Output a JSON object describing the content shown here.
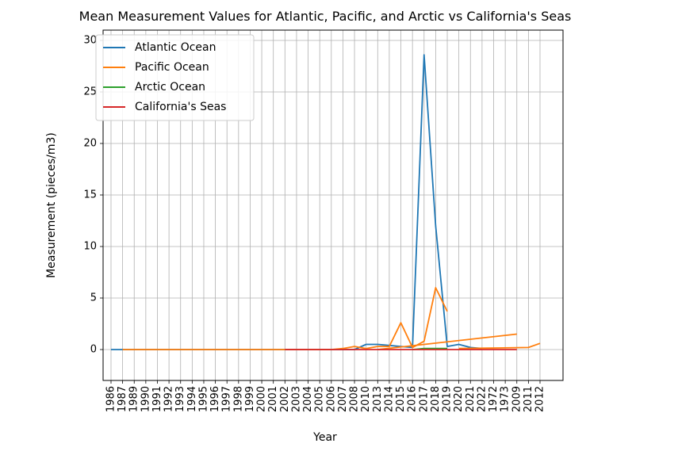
{
  "chart_data": {
    "type": "line",
    "title": "Mean Measurement Values for Atlantic, Pacific, and Arctic vs California's Seas",
    "xlabel": "Year",
    "ylabel": "Measurement (pieces/m3)",
    "categories": [
      "1986",
      "1987",
      "1989",
      "1990",
      "1991",
      "1992",
      "1993",
      "1994",
      "1995",
      "1996",
      "1997",
      "1998",
      "1999",
      "2000",
      "2001",
      "2002",
      "2003",
      "2004",
      "2005",
      "2006",
      "2007",
      "2008",
      "2010",
      "2013",
      "2014",
      "2015",
      "2016",
      "2017",
      "2018",
      "2019",
      "2020",
      "2021",
      "2022",
      "1972",
      "1973",
      "2009",
      "2011",
      "2012"
    ],
    "ylim": [
      -3,
      31
    ],
    "yticks": [
      0,
      5,
      10,
      15,
      20,
      25,
      30
    ],
    "grid": true,
    "legend_position": "upper-left",
    "series": [
      {
        "name": "Atlantic Ocean",
        "color": "#1f77b4",
        "points": [
          [
            "1986",
            0.0
          ],
          [
            "1987",
            0.0
          ],
          [
            "1989",
            0.0
          ],
          [
            "1990",
            0.0
          ],
          [
            "1991",
            0.0
          ],
          [
            "1992",
            0.0
          ],
          [
            "1993",
            0.0
          ],
          [
            "1994",
            0.0
          ],
          [
            "1995",
            0.0
          ],
          [
            "1996",
            0.0
          ],
          [
            "1997",
            0.0
          ],
          [
            "1998",
            0.0
          ],
          [
            "1999",
            0.0
          ],
          [
            "2000",
            0.0
          ],
          [
            "2001",
            0.0
          ],
          [
            "2002",
            0.0
          ],
          [
            "2003",
            0.0
          ],
          [
            "2004",
            0.0
          ],
          [
            "2005",
            0.0
          ],
          [
            "2006",
            0.0
          ],
          [
            "2007",
            0.0
          ],
          [
            "2008",
            0.0
          ],
          [
            "2010",
            0.5
          ],
          [
            "2013",
            0.5
          ],
          [
            "2014",
            0.4
          ],
          [
            "2015",
            0.3
          ],
          [
            "2016",
            0.2
          ],
          [
            "2017",
            28.6
          ],
          [
            "2018",
            12.0
          ],
          [
            "2019",
            0.3
          ],
          [
            "2020",
            0.5
          ],
          [
            "2021",
            0.2
          ],
          [
            "2022",
            0.1
          ]
        ]
      },
      {
        "name": "Pacific Ocean",
        "color": "#ff7f0e",
        "points": [
          [
            "1987",
            0.0
          ],
          [
            "1989",
            0.0
          ],
          [
            "1990",
            0.0
          ],
          [
            "1991",
            0.0
          ],
          [
            "1992",
            0.0
          ],
          [
            "1993",
            0.0
          ],
          [
            "1994",
            0.0
          ],
          [
            "1995",
            0.0
          ],
          [
            "1996",
            0.0
          ],
          [
            "1997",
            0.0
          ],
          [
            "1998",
            0.0
          ],
          [
            "1999",
            0.0
          ],
          [
            "2000",
            0.0
          ],
          [
            "2001",
            0.0
          ],
          [
            "2002",
            0.0
          ],
          [
            "2003",
            0.0
          ],
          [
            "2004",
            0.0
          ],
          [
            "2005",
            0.0
          ],
          [
            "2006",
            0.0
          ],
          [
            "2007",
            0.1
          ],
          [
            "2008",
            0.3
          ],
          [
            "2010",
            0.1
          ],
          [
            "2013",
            0.3
          ],
          [
            "2014",
            0.3
          ],
          [
            "2015",
            2.6
          ],
          [
            "2016",
            0.2
          ],
          [
            "2017",
            0.8
          ],
          [
            "2018",
            6.0
          ],
          [
            "2019",
            3.7
          ]
        ],
        "extra_segments": [
          [
            [
              "2013",
              0.0
            ],
            [
              "2009",
              1.5
            ]
          ],
          [
            [
              "2020",
              0.1
            ],
            [
              "2011",
              0.2
            ],
            [
              "2012",
              0.6
            ]
          ]
        ]
      },
      {
        "name": "Arctic Ocean",
        "color": "#2ca02c",
        "points": [
          [
            "2016",
            0.0
          ],
          [
            "2017",
            0.1
          ],
          [
            "2018",
            0.1
          ],
          [
            "2019",
            0.1
          ]
        ]
      },
      {
        "name": "California's Seas",
        "color": "#d62728",
        "points": [
          [
            "2002",
            0.0
          ],
          [
            "2003",
            0.0
          ],
          [
            "2004",
            0.0
          ],
          [
            "2005",
            0.0
          ],
          [
            "2006",
            0.0
          ],
          [
            "2007",
            0.0
          ],
          [
            "2008",
            0.0
          ],
          [
            "2010",
            0.0
          ],
          [
            "2013",
            0.0
          ],
          [
            "2014",
            0.0
          ],
          [
            "2015",
            0.0
          ],
          [
            "2016",
            0.0
          ],
          [
            "2017",
            0.0
          ],
          [
            "2018",
            0.0
          ],
          [
            "2019",
            0.0
          ],
          [
            "2020",
            0.0
          ],
          [
            "2021",
            0.0
          ],
          [
            "2022",
            0.0
          ],
          [
            "1972",
            0.0
          ],
          [
            "1973",
            0.0
          ],
          [
            "2009",
            0.0
          ]
        ]
      }
    ]
  }
}
